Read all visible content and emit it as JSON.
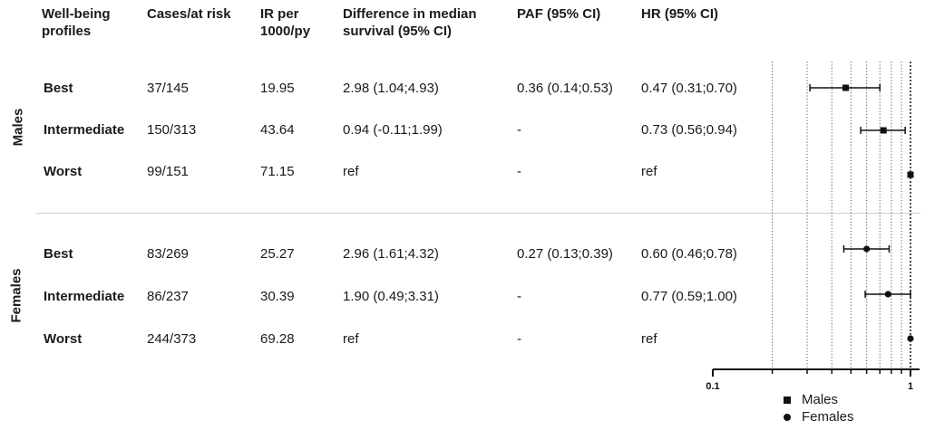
{
  "header": {
    "col_profile": "Well-being\nprofiles",
    "col_cases": "Cases/at risk",
    "col_ir": "IR per\n1000/py",
    "col_diff": "Difference in median\nsurvival (95% CI)",
    "col_paf": "PAF (95% CI)",
    "col_hr": "HR (95% CI)"
  },
  "groups": [
    {
      "label": "Males",
      "rows": [
        {
          "profile": "Best",
          "cases": "37/145",
          "ir": "19.95",
          "diff": "2.98 (1.04;4.93)",
          "paf": "0.36 (0.14;0.53)",
          "hr": "0.47 (0.31;0.70)"
        },
        {
          "profile": "Intermediate",
          "cases": "150/313",
          "ir": "43.64",
          "diff": "0.94 (-0.11;1.99)",
          "paf": "-",
          "hr": "0.73 (0.56;0.94)"
        },
        {
          "profile": "Worst",
          "cases": "99/151",
          "ir": "71.15",
          "diff": "ref",
          "paf": "-",
          "hr": "ref"
        }
      ]
    },
    {
      "label": "Females",
      "rows": [
        {
          "profile": "Best",
          "cases": "83/269",
          "ir": "25.27",
          "diff": "2.96 (1.61;4.32)",
          "paf": "0.27 (0.13;0.39)",
          "hr": "0.60 (0.46;0.78)"
        },
        {
          "profile": "Intermediate",
          "cases": "86/237",
          "ir": "30.39",
          "diff": "1.90 (0.49;3.31)",
          "paf": "-",
          "hr": "0.77 (0.59;1.00)"
        },
        {
          "profile": "Worst",
          "cases": "244/373",
          "ir": "69.28",
          "diff": "ref",
          "paf": "-",
          "hr": "ref"
        }
      ]
    }
  ],
  "chart_data": {
    "type": "scatter",
    "x_scale": "log",
    "xlim": [
      0.1,
      1
    ],
    "x_ticks": [
      "0.1",
      "1"
    ],
    "x_minor_gridlines": [
      0.2,
      0.3,
      0.4,
      0.5,
      0.6,
      0.7,
      0.8,
      0.9
    ],
    "reference_line": 1,
    "legend_position": "bottom-right",
    "series": [
      {
        "name": "Males",
        "marker": "square",
        "points": [
          {
            "y": "Best",
            "x": 0.47,
            "lo": 0.31,
            "hi": 0.7
          },
          {
            "y": "Intermediate",
            "x": 0.73,
            "lo": 0.56,
            "hi": 0.94
          },
          {
            "y": "Worst",
            "x": 1.0,
            "lo": null,
            "hi": null
          }
        ]
      },
      {
        "name": "Females",
        "marker": "circle",
        "points": [
          {
            "y": "Best",
            "x": 0.6,
            "lo": 0.46,
            "hi": 0.78
          },
          {
            "y": "Intermediate",
            "x": 0.77,
            "lo": 0.59,
            "hi": 1.0
          },
          {
            "y": "Worst",
            "x": 1.0,
            "lo": null,
            "hi": null
          }
        ]
      }
    ]
  }
}
